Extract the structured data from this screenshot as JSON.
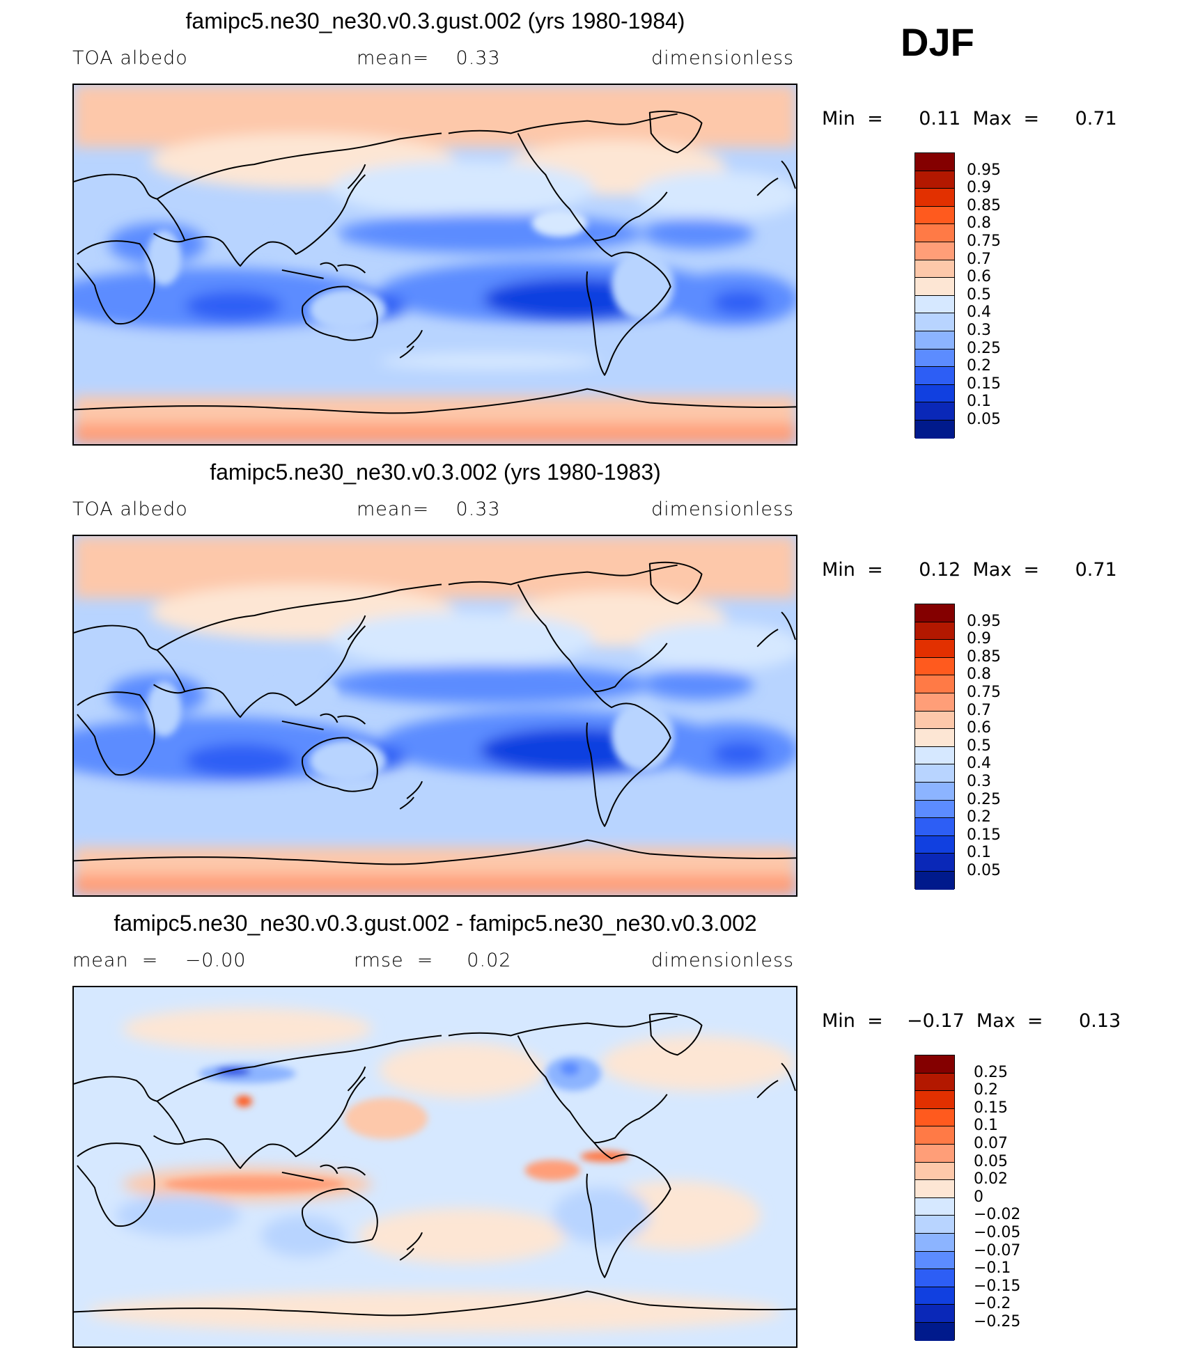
{
  "season": "DJF",
  "panels": [
    {
      "title": "famipc5.ne30_ne30.v0.3.gust.002 (yrs 1980-1984)",
      "left_label": "TOA  albedo",
      "center_label": "mean=    0.33",
      "right_label": "dimensionless",
      "min_max": "Min  =      0.11  Max  =      0.71",
      "colorbar": {
        "colors": [
          "#840000",
          "#b31800",
          "#e23000",
          "#ff5a1e",
          "#ff7a46",
          "#ff9e78",
          "#fdc8aa",
          "#fde6d4",
          "#d6e8ff",
          "#b8d4ff",
          "#8cb4ff",
          "#5c8cff",
          "#2d5ef5",
          "#1140e0",
          "#0a28b8",
          "#001a8c"
        ],
        "labels": [
          "0.95",
          "0.9",
          "0.85",
          "0.8",
          "0.75",
          "0.7",
          "0.6",
          "0.5",
          "0.4",
          "0.3",
          "0.25",
          "0.2",
          "0.15",
          "0.1",
          "0.05"
        ]
      }
    },
    {
      "title": "famipc5.ne30_ne30.v0.3.002 (yrs 1980-1983)",
      "left_label": "TOA  albedo",
      "center_label": "mean=    0.33",
      "right_label": "dimensionless",
      "min_max": "Min  =      0.12  Max  =      0.71",
      "colorbar": {
        "colors": [
          "#840000",
          "#b31800",
          "#e23000",
          "#ff5a1e",
          "#ff7a46",
          "#ff9e78",
          "#fdc8aa",
          "#fde6d4",
          "#d6e8ff",
          "#b8d4ff",
          "#8cb4ff",
          "#5c8cff",
          "#2d5ef5",
          "#1140e0",
          "#0a28b8",
          "#001a8c"
        ],
        "labels": [
          "0.95",
          "0.9",
          "0.85",
          "0.8",
          "0.75",
          "0.7",
          "0.6",
          "0.5",
          "0.4",
          "0.3",
          "0.25",
          "0.2",
          "0.15",
          "0.1",
          "0.05"
        ]
      }
    },
    {
      "title": "famipc5.ne30_ne30.v0.3.gust.002 - famipc5.ne30_ne30.v0.3.002",
      "left_label": "mean  =    −0.00",
      "center_label": "rmse  =     0.02",
      "right_label": "dimensionless",
      "min_max": "Min  =    −0.17  Max  =      0.13",
      "colorbar": {
        "colors": [
          "#840000",
          "#b31800",
          "#e23000",
          "#ff5a1e",
          "#ff7a46",
          "#ff9e78",
          "#fdc8aa",
          "#fde6d4",
          "#d6e8ff",
          "#b8d4ff",
          "#8cb4ff",
          "#5c8cff",
          "#2d5ef5",
          "#1140e0",
          "#0a28b8",
          "#001a8c"
        ],
        "labels": [
          "0.25",
          "0.2",
          "0.15",
          "0.1",
          "0.07",
          "0.05",
          "0.02",
          "0",
          "−0.02",
          "−0.05",
          "−0.07",
          "−0.1",
          "−0.15",
          "−0.2",
          "−0.25"
        ]
      }
    }
  ]
}
